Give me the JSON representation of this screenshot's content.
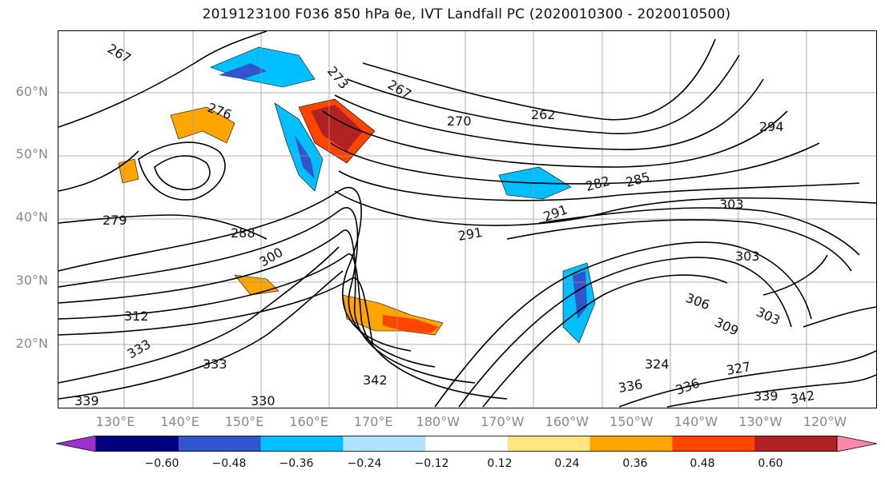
{
  "title": "2019123100 F036 850 hPa θe, IVT Landfall PC (2020010300 - 2020010500)",
  "map": {
    "lat_labels": [
      "60°N",
      "50°N",
      "40°N",
      "30°N",
      "20°N"
    ],
    "lon_labels": [
      "130°E",
      "140°E",
      "150°E",
      "160°E",
      "170°E",
      "180°W",
      "170°W",
      "160°W",
      "150°W",
      "140°W",
      "130°W",
      "120°W"
    ],
    "contour_labels": [
      "267",
      "273",
      "267",
      "262",
      "270",
      "276",
      "282",
      "285",
      "291",
      "294",
      "303",
      "288",
      "291",
      "300",
      "303",
      "306",
      "303",
      "309",
      "312",
      "324",
      "327",
      "333",
      "336",
      "339",
      "342",
      "342",
      "336",
      "330",
      "279",
      "333",
      "339"
    ]
  },
  "colorbar": {
    "tick_labels": [
      "−0.60",
      "−0.48",
      "−0.36",
      "−0.24",
      "−0.12",
      "0.12",
      "0.24",
      "0.36",
      "0.48",
      "0.60"
    ],
    "colors": [
      "#9933cc",
      "#000080",
      "#3355cc",
      "#00bfff",
      "#b0e2ff",
      "#ffffff",
      "#ffe680",
      "#ffa500",
      "#ff4500",
      "#b22222",
      "#ff88aa"
    ]
  }
}
